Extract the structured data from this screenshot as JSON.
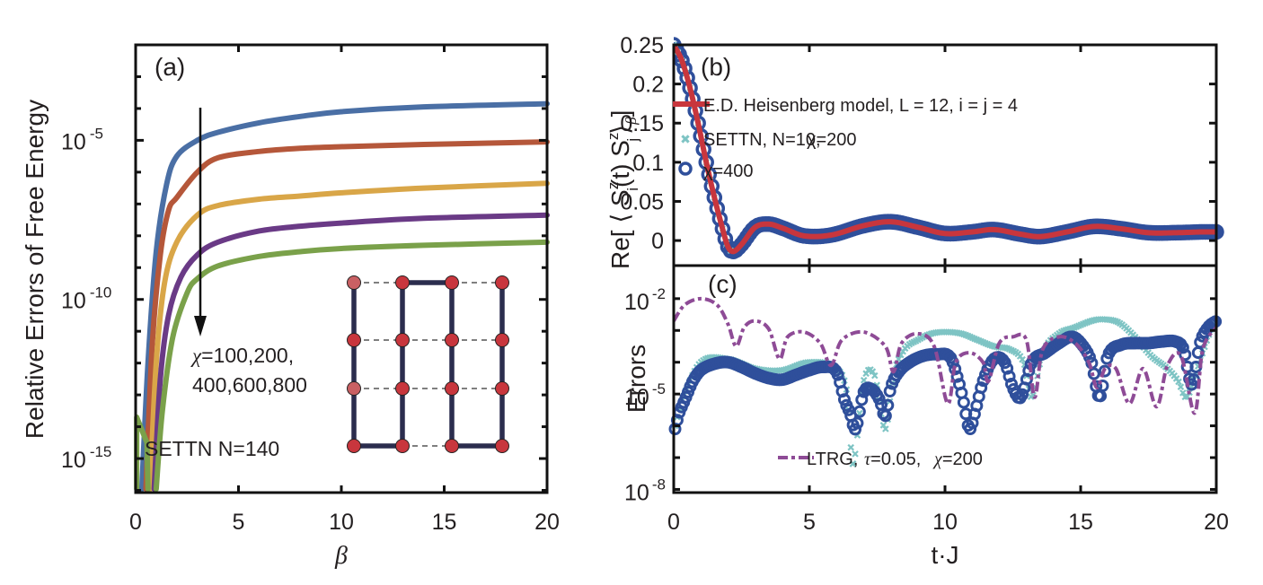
{
  "chart_data": [
    {
      "id": "a",
      "type": "line",
      "panel_label": "(a)",
      "title": "",
      "xlabel": "β",
      "ylabel": "Relative Errors of Free Energy",
      "xlim": [
        0,
        20
      ],
      "ylim_log10": [
        -16.07,
        -2.0
      ],
      "yscale": "log",
      "x_ticks": [
        0,
        5,
        10,
        15,
        20
      ],
      "x_tick_labels": [
        "0",
        "5",
        "10",
        "15",
        "20"
      ],
      "y_ticks_log10": [
        -5,
        -10,
        -15
      ],
      "y_tick_labels": [
        {
          "base": "10",
          "exp": "-5"
        },
        {
          "base": "10",
          "exp": "-10"
        },
        {
          "base": "10",
          "exp": "-15"
        }
      ],
      "grid": false,
      "annotations": {
        "arrow_label_line1": "χ=100,200,",
        "arrow_label_line2": "400,600,800",
        "method_label": "SETTN N=140"
      },
      "series": [
        {
          "name": "χ=100",
          "color": "#4a6fa5",
          "x": [
            0.3,
            0.6,
            1.0,
            1.5,
            2.0,
            3.0,
            4.0,
            6.0,
            8.0,
            10.0,
            14.0,
            20.0
          ],
          "log10_y": [
            -16.0,
            -12.0,
            -8.5,
            -6.4,
            -5.5,
            -5.0,
            -4.75,
            -4.45,
            -4.25,
            -4.1,
            -3.95,
            -3.85
          ]
        },
        {
          "name": "χ=200",
          "color": "#b5573a",
          "x": [
            0.5,
            0.8,
            1.2,
            1.6,
            2.0,
            3.0,
            4.0,
            6.0,
            8.0,
            10.0,
            14.0,
            20.0
          ],
          "log10_y": [
            -16.0,
            -11.5,
            -8.6,
            -7.2,
            -6.8,
            -6.0,
            -5.55,
            -5.35,
            -5.25,
            -5.2,
            -5.13,
            -5.05
          ]
        },
        {
          "name": "χ=400",
          "color": "#d9a648",
          "x": [
            0.7,
            1.0,
            1.4,
            2.0,
            3.0,
            4.0,
            6.0,
            8.0,
            10.0,
            14.0,
            20.0
          ],
          "log10_y": [
            -16.0,
            -12.0,
            -9.5,
            -8.2,
            -7.35,
            -7.05,
            -6.85,
            -6.75,
            -6.65,
            -6.5,
            -6.35
          ]
        },
        {
          "name": "χ=600",
          "color": "#6a3a86",
          "x": [
            0.9,
            1.2,
            1.6,
            2.2,
            3.0,
            4.0,
            6.0,
            8.0,
            10.0,
            14.0,
            20.0
          ],
          "log10_y": [
            -16.0,
            -12.5,
            -10.5,
            -9.3,
            -8.6,
            -8.2,
            -7.85,
            -7.7,
            -7.6,
            -7.45,
            -7.35
          ]
        },
        {
          "name": "χ=800",
          "color": "#7aa14a",
          "x": [
            1.0,
            1.3,
            1.8,
            2.5,
            3.0,
            4.0,
            6.0,
            8.0,
            10.0,
            14.0,
            20.0
          ],
          "log10_y": [
            -16.0,
            -13.5,
            -11.2,
            -9.8,
            -9.35,
            -8.95,
            -8.65,
            -8.5,
            -8.4,
            -8.3,
            -8.2
          ]
        }
      ],
      "inset": {
        "description": "4x4 lattice with thick bonds (snake path) and dashed bonds",
        "node_color": "#c8363d",
        "node_color_light": "#c96063",
        "bond_color": "#2b2d4e"
      }
    },
    {
      "id": "b",
      "type": "line",
      "panel_label": "(b)",
      "title": "",
      "xlabel": "",
      "ylabel": "Re[ ⟨ S_i^z(t) S_j^z ⟩_β ]",
      "ylabel_parts": {
        "prefix": "Re[ ⟨ S",
        "sup1": "z",
        "sub1": "i",
        "mid": "(t) S",
        "sup2": "z",
        "sub2": "j",
        "suffix": "⟩",
        "sub3": "β",
        "close": "]"
      },
      "xlim": [
        0,
        20
      ],
      "ylim": [
        -0.032,
        0.25
      ],
      "x_ticks": [
        0,
        5,
        10,
        15,
        20
      ],
      "y_ticks": [
        0,
        0.05,
        0.1,
        0.15,
        0.2,
        0.25
      ],
      "y_tick_labels": [
        "0",
        "0.05",
        "0.1",
        "0.15",
        "0.2",
        "0.25"
      ],
      "grid": false,
      "legend_position": "top-center",
      "series": [
        {
          "name": "E.D. Heisenberg model, L = 12, i = j = 4",
          "style": "line",
          "color": "#c8363d",
          "x": [
            0,
            0.3,
            0.6,
            0.9,
            1.2,
            1.5,
            1.8,
            2.0,
            2.2,
            2.5,
            3.0,
            3.5,
            4.0,
            4.8,
            5.8,
            7.0,
            8.0,
            9.0,
            10.0,
            11.0,
            11.8,
            12.8,
            13.5,
            14.5,
            15.5,
            16.5,
            17.5,
            18.5,
            19.5,
            20.0
          ],
          "y": [
            0.25,
            0.23,
            0.195,
            0.15,
            0.1,
            0.055,
            0.015,
            -0.008,
            -0.014,
            -0.005,
            0.017,
            0.021,
            0.016,
            0.006,
            0.007,
            0.019,
            0.024,
            0.017,
            0.009,
            0.011,
            0.014,
            0.008,
            0.005,
            0.011,
            0.018,
            0.015,
            0.01,
            0.01,
            0.011,
            0.011
          ]
        },
        {
          "name": "SETTN, N=10, χ=200",
          "style": "cross-marker",
          "color": "#7ec4c4"
        },
        {
          "name": "χ=400",
          "style": "circle-marker",
          "color": "#2f4f9b"
        }
      ],
      "legend": [
        {
          "label": "E.D. Heisenberg model, L = 12, i = j = 4"
        },
        {
          "label_a": "SETTN, N=10,",
          "label_b": "χ=200"
        },
        {
          "label": "χ=400"
        }
      ]
    },
    {
      "id": "c",
      "type": "scatter",
      "panel_label": "(c)",
      "title": "",
      "xlabel": "t·J",
      "ylabel": "Errors",
      "xlim": [
        0,
        20
      ],
      "ylim_log10": [
        -8.1,
        -0.96
      ],
      "yscale": "log",
      "x_ticks": [
        0,
        5,
        10,
        15,
        20
      ],
      "x_tick_labels": [
        "0",
        "5",
        "10",
        "15",
        "20"
      ],
      "y_ticks_log10": [
        -2,
        -5,
        -8
      ],
      "y_tick_labels": [
        {
          "base": "10",
          "exp": "-2"
        },
        {
          "base": "10",
          "exp": "-5"
        },
        {
          "base": "10",
          "exp": "-8"
        }
      ],
      "grid": false,
      "legend_position": "bottom-right",
      "legend": [
        {
          "label_a": "LTRG,",
          "label_b": "τ=0.05,",
          "label_c": "χ=200"
        }
      ],
      "series": [
        {
          "name": "LTRG, τ=0.05, χ=200",
          "style": "dash-dot",
          "color": "#8e4b96",
          "x": [
            0.0,
            0.4,
            1.0,
            1.6,
            2.0,
            2.3,
            2.6,
            3.0,
            3.5,
            3.9,
            4.2,
            4.8,
            5.4,
            5.8,
            6.2,
            7.0,
            7.8,
            8.1,
            8.4,
            9.0,
            9.6,
            10.1,
            10.4,
            10.9,
            11.4,
            11.6,
            12.0,
            12.5,
            13.0,
            13.3,
            13.6,
            14.2,
            14.8,
            15.3,
            15.6,
            15.9,
            16.3,
            16.8,
            17.3,
            17.8,
            18.2,
            18.7,
            19.2,
            19.5,
            20.0
          ],
          "log10_y": [
            -2.7,
            -2.2,
            -2.0,
            -2.2,
            -2.8,
            -3.5,
            -2.9,
            -2.7,
            -2.95,
            -3.9,
            -3.2,
            -3.05,
            -3.4,
            -4.1,
            -3.3,
            -3.05,
            -3.5,
            -4.3,
            -3.4,
            -3.1,
            -3.5,
            -5.3,
            -4.0,
            -3.7,
            -4.0,
            -4.6,
            -3.4,
            -3.2,
            -3.3,
            -5.1,
            -3.6,
            -3.2,
            -3.4,
            -4.0,
            -4.8,
            -4.2,
            -4.2,
            -5.3,
            -4.2,
            -5.4,
            -4.1,
            -3.8,
            -5.6,
            -3.6,
            -2.9
          ]
        },
        {
          "name": "SETTN N=10, χ=200",
          "style": "cross-marker",
          "color": "#7ec4c4",
          "x": [
            0.05,
            0.3,
            1.0,
            2.0,
            3.0,
            4.0,
            5.0,
            6.0,
            6.4,
            6.6,
            7.0,
            7.4,
            7.8,
            8.1,
            8.5,
            9.0,
            9.5,
            10.0,
            10.6,
            11.2,
            11.8,
            12.4,
            12.9,
            13.2,
            13.6,
            14.2,
            14.8,
            15.4,
            15.8,
            16.4,
            17.0,
            17.6,
            18.2,
            18.6,
            18.9,
            19.3,
            19.7,
            20.0
          ],
          "log10_y": [
            -6.0,
            -5.2,
            -4.0,
            -3.9,
            -4.2,
            -4.25,
            -4.0,
            -4.2,
            -5.0,
            -7.2,
            -4.6,
            -4.4,
            -6.1,
            -4.4,
            -3.6,
            -3.3,
            -3.1,
            -3.05,
            -3.1,
            -3.3,
            -3.5,
            -3.6,
            -4.0,
            -5.1,
            -3.7,
            -3.1,
            -2.9,
            -2.7,
            -2.65,
            -2.75,
            -3.2,
            -3.8,
            -4.2,
            -4.6,
            -5.1,
            -4.2,
            -3.2,
            -2.6
          ]
        },
        {
          "name": "SETTN N=10, χ=400",
          "style": "circle-marker",
          "color": "#2f4f9b",
          "x": [
            0.05,
            0.2,
            0.35,
            0.5,
            0.7,
            1.0,
            1.5,
            2.0,
            2.5,
            3.0,
            3.5,
            4.0,
            4.5,
            5.0,
            5.5,
            6.0,
            6.3,
            6.5,
            6.7,
            7.0,
            7.3,
            7.6,
            7.8,
            8.0,
            8.3,
            8.7,
            9.2,
            9.7,
            10.2,
            10.5,
            10.7,
            10.9,
            11.1,
            11.4,
            11.8,
            12.2,
            12.5,
            12.8,
            13.2,
            13.7,
            14.2,
            14.7,
            15.1,
            15.4,
            15.7,
            16.0,
            16.5,
            17.0,
            17.5,
            18.0,
            18.5,
            18.8,
            19.1,
            19.4,
            19.7,
            20.0
          ],
          "log10_y": [
            -6.1,
            -5.6,
            -5.3,
            -5.0,
            -4.6,
            -4.25,
            -4.05,
            -4.0,
            -4.15,
            -4.35,
            -4.5,
            -4.55,
            -4.4,
            -4.25,
            -4.15,
            -4.3,
            -5.2,
            -5.6,
            -6.1,
            -4.95,
            -4.85,
            -5.2,
            -5.7,
            -4.8,
            -4.3,
            -4.0,
            -3.8,
            -3.75,
            -3.85,
            -4.6,
            -5.3,
            -6.1,
            -5.6,
            -4.6,
            -3.9,
            -4.0,
            -4.8,
            -5.1,
            -4.0,
            -3.7,
            -3.4,
            -3.2,
            -3.5,
            -4.0,
            -5.1,
            -3.8,
            -3.45,
            -3.4,
            -3.4,
            -3.35,
            -3.35,
            -3.6,
            -4.7,
            -3.4,
            -2.9,
            -2.7
          ]
        }
      ]
    }
  ]
}
